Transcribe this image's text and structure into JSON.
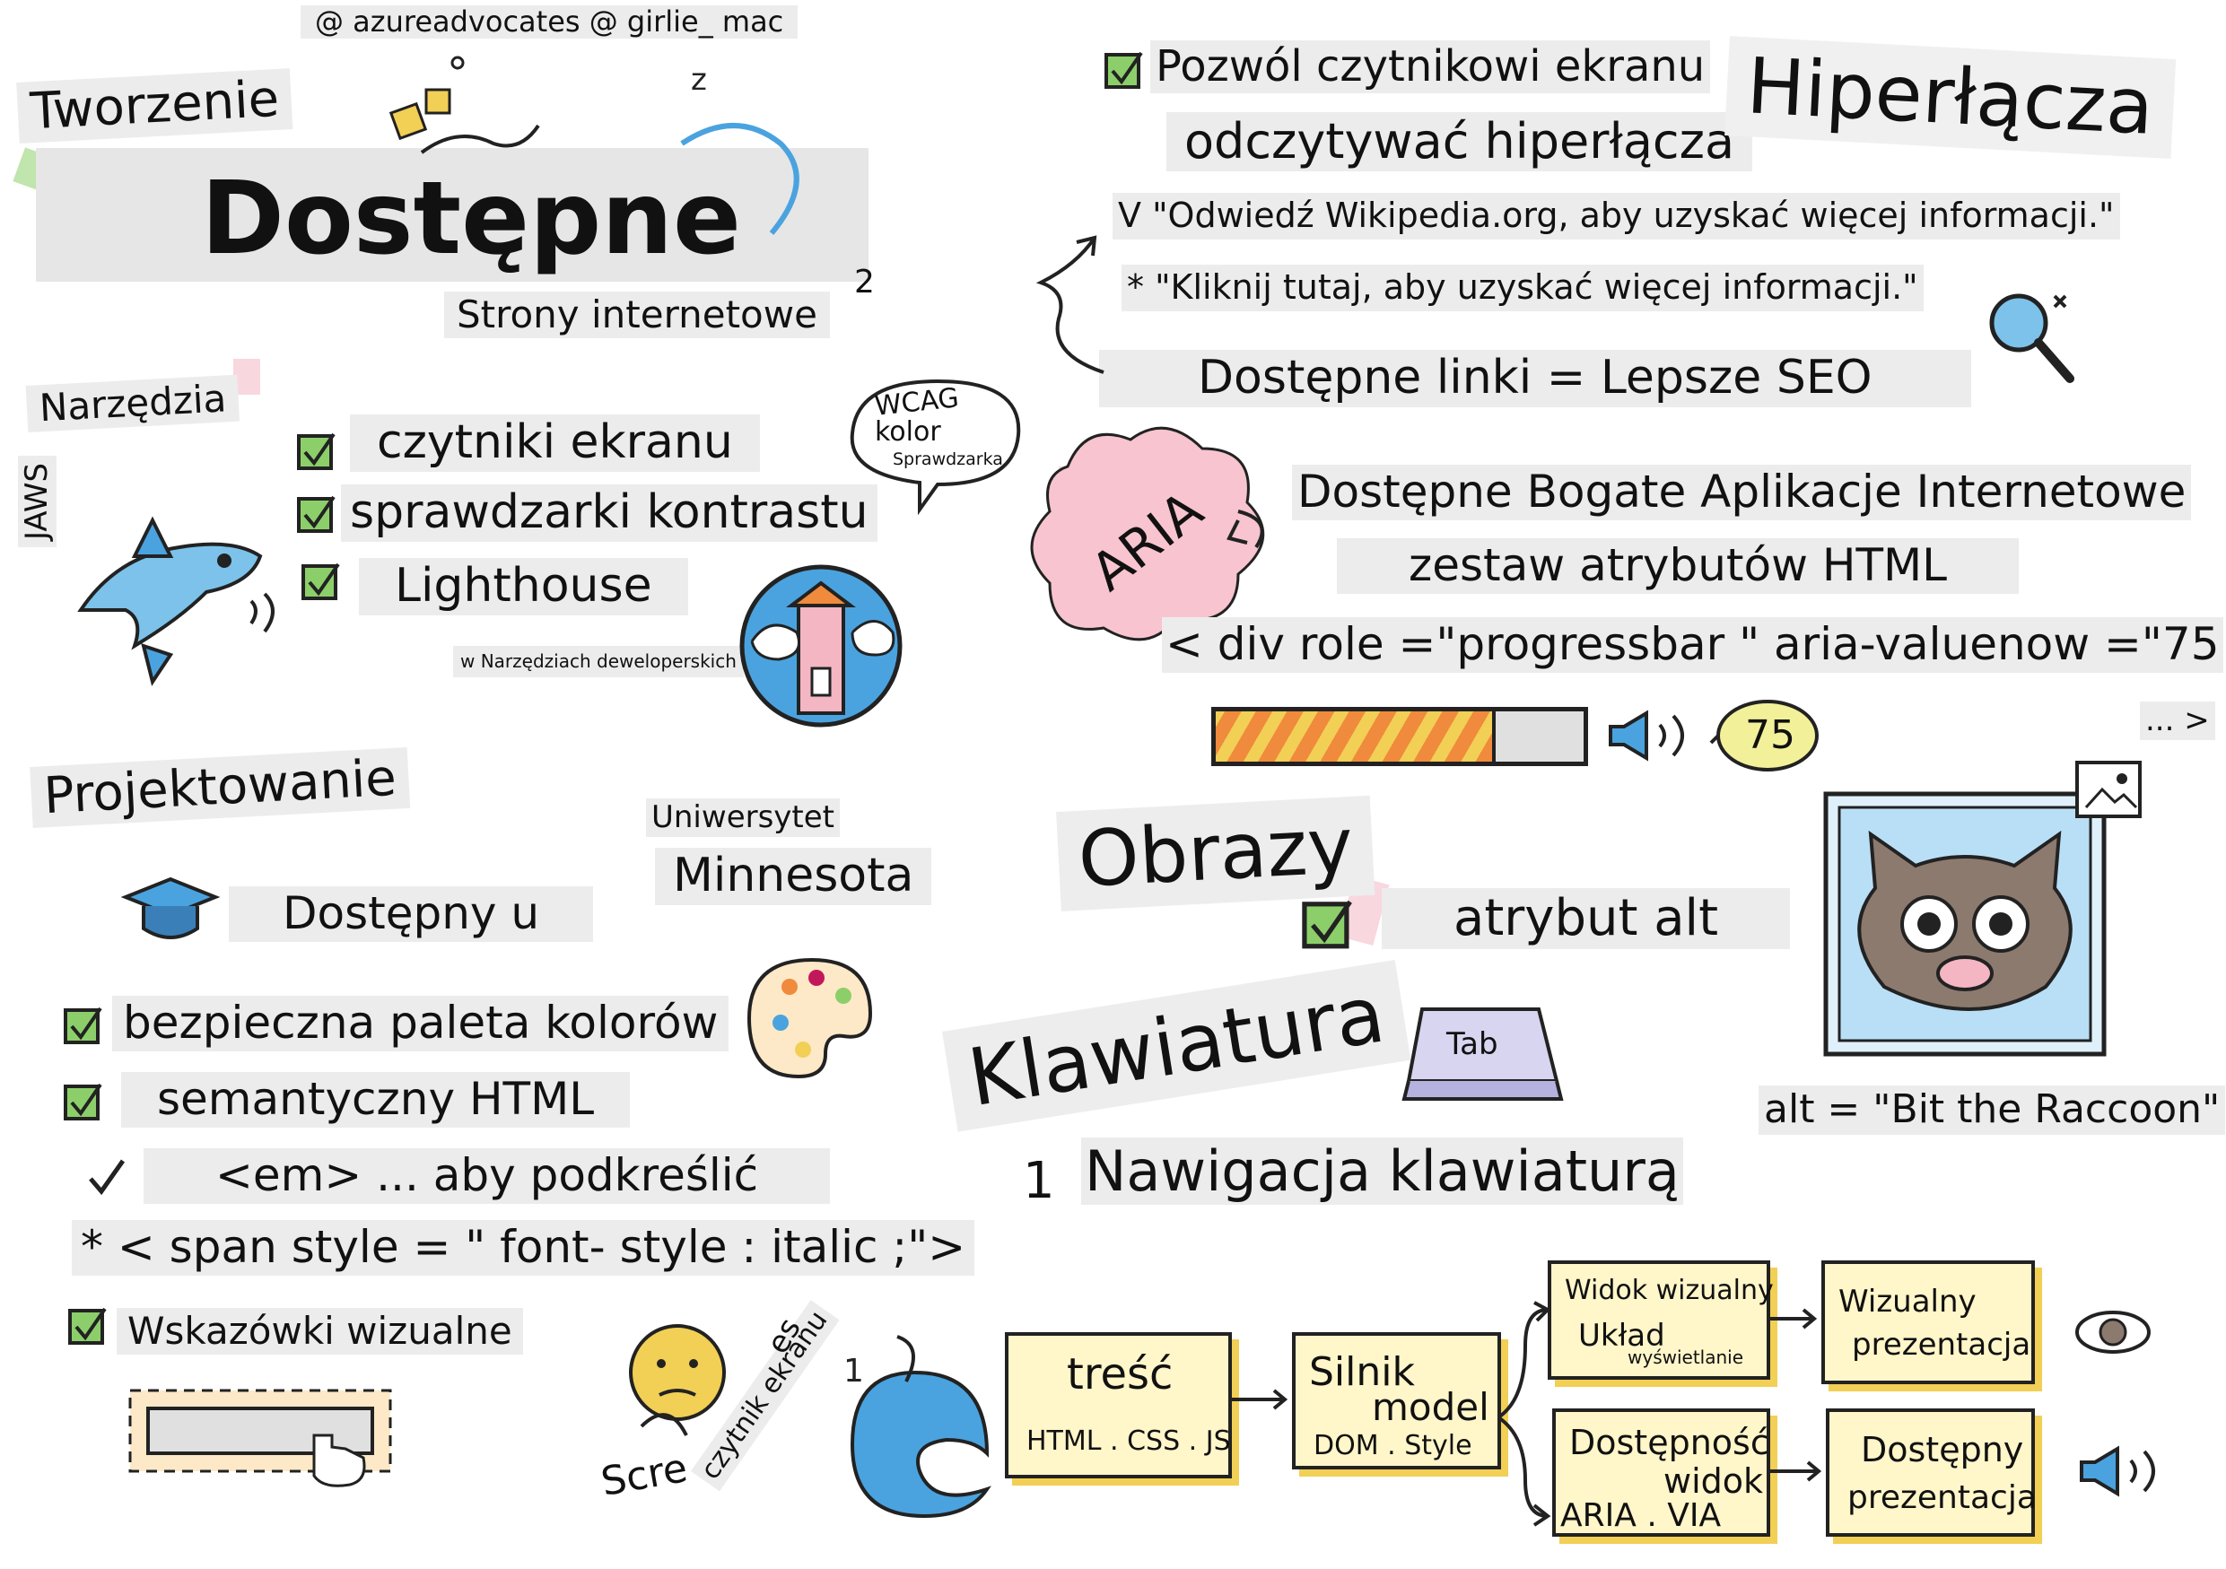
{
  "credits": "@ azureadvocates @ girlie_ mac",
  "title": {
    "pre": "Tworzenie",
    "main": "Dostępne",
    "sub": "Strony internetowe"
  },
  "tools": {
    "heading": "Narzędzia",
    "items": [
      "czytniki ekranu",
      "sprawdzarki kontrastu",
      "Lighthouse"
    ],
    "jaws": "JAWS",
    "lighthouse_note": "w Narzędziach deweloperskich",
    "wcag_bubble": [
      "WCAG",
      "kolor",
      "Sprawdzarka"
    ]
  },
  "design": {
    "heading": "Projektowanie",
    "university_line1": "Uniwersytet",
    "university_line2": "Minnesota",
    "available_at": "Dostępny u",
    "items": [
      "bezpieczna paleta kolorów",
      "semantyczny HTML",
      "<em> ... aby podkreślić",
      "* < span style = \" font- style : italic ;\">",
      "Wskazówki wizualne"
    ]
  },
  "hyperlinks": {
    "heading": "Hiperłącza",
    "line1": "Pozwól czytnikowi ekranu",
    "line2": "odczytywać hiperłącza",
    "good": "V \"Odwiedź Wikipedia.org, aby uzyskać więcej informacji.\"",
    "bad": "* \"Kliknij tutaj, aby uzyskać więcej informacji.\"",
    "seo": "Dostępne linki = Lepsze SEO"
  },
  "aria": {
    "badge": "ARIA",
    "full": "Dostępne Bogate Aplikacje Internetowe",
    "desc": "zestaw atrybutów HTML",
    "code": "< div role =\"progressbar \" aria-valuenow =\"75",
    "code_end": "... >",
    "progress_value": 75,
    "progress_label": "75"
  },
  "images": {
    "heading": "Obrazy",
    "alt_attr": "atrybut alt",
    "alt_example": "alt = \"Bit the Raccoon\""
  },
  "keyboard": {
    "heading": "Klawiatura",
    "tab_key": "Tab",
    "navigation": "Nawigacja klawiaturą",
    "number": "1"
  },
  "screen_reader": {
    "label_a": "Scre",
    "label_b": "czytnik ekranu",
    "label_c": "es"
  },
  "pipeline": {
    "content": {
      "title": "treść",
      "sub": "HTML . CSS . JS"
    },
    "engine": {
      "title1": "Silnik",
      "title2": "model",
      "sub": "DOM . Style"
    },
    "visual_view": {
      "title": "Widok wizualny",
      "sub1": "Układ",
      "sub2": "wyświetlanie"
    },
    "visual_pres": {
      "line1": "Wizualny",
      "line2": "prezentacja"
    },
    "access_view": {
      "line1": "Dostępność",
      "line2": "widok",
      "sub": "ARIA . VIA"
    },
    "access_pres": {
      "line1": "Dostępny",
      "line2": "prezentacja"
    }
  },
  "colors": {
    "check_green": "#8ccf6a",
    "accent_yellow": "#f2cf55",
    "accent_pink": "#f4b6c2",
    "accent_blue": "#4aa3df",
    "progress_orange": "#f08a3c"
  }
}
